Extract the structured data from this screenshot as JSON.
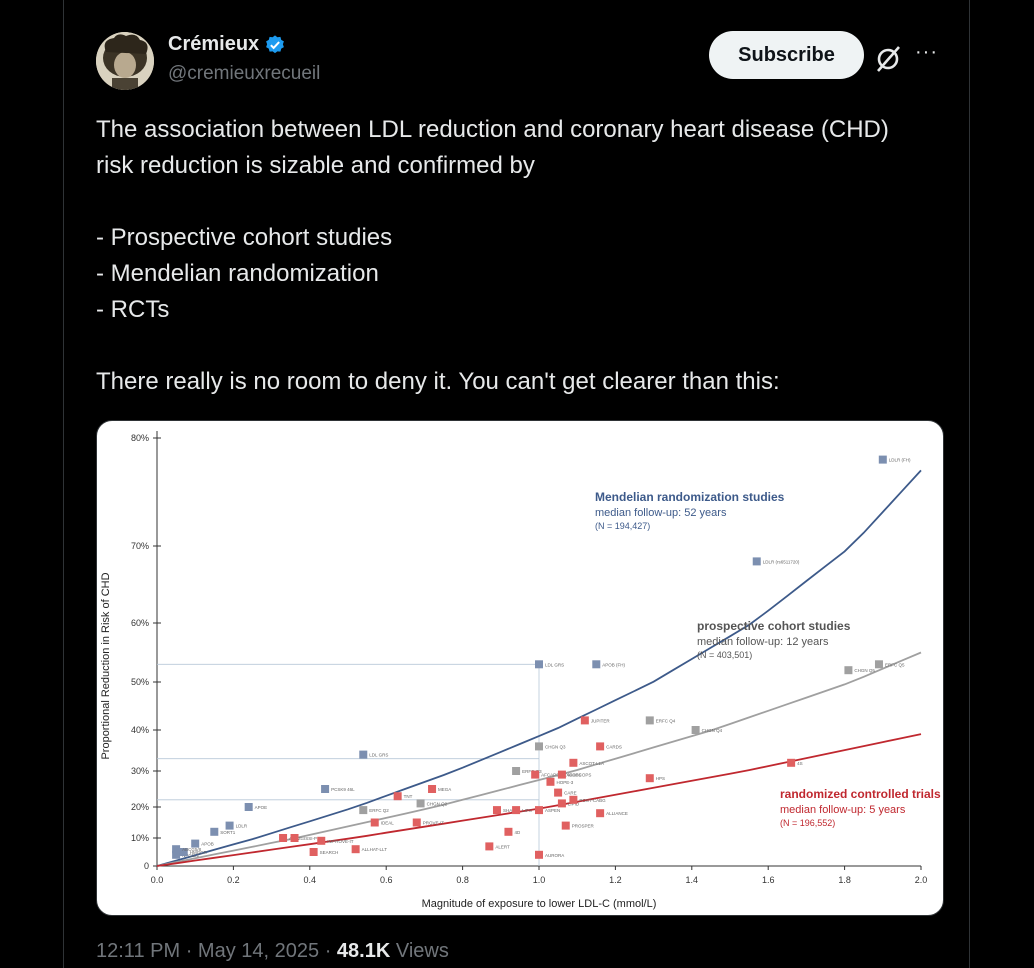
{
  "author": {
    "name": "Crémieux",
    "handle": "@cremieuxrecueil",
    "verified_icon": "verified-badge-icon"
  },
  "actions": {
    "subscribe_label": "Subscribe",
    "grok_icon": "grok-icon",
    "more_label": "···"
  },
  "tweet": {
    "line1": "The association between LDL reduction and coronary heart disease (CHD) risk reduction is sizable and confirmed by",
    "bullet1": "- Prospective cohort studies",
    "bullet2": "- Mendelian randomization",
    "bullet3": "- RCTs",
    "line2": "There really is no room to deny it. You can't get clearer than this:"
  },
  "meta": {
    "time": "12:11 PM",
    "sep1": "·",
    "date": "May 14, 2025",
    "sep2": "·",
    "views_count": "48.1K",
    "views_label": "Views"
  },
  "colors": {
    "mendelian": "#3d5a8a",
    "cohort": "#a0a0a0",
    "rct": "#c0282f",
    "rct_point": "#e06060",
    "mendelian_point": "#7c8fb0"
  },
  "chart_data": {
    "type": "scatter",
    "xlabel": "Magnitude of exposure to lower LDL-C (mmol/L)",
    "ylabel": "Proportional Reduction in Risk of CHD",
    "xlim": [
      0,
      2.0
    ],
    "ylim": [
      0,
      80
    ],
    "y_scale": "log-like",
    "x_ticks": [
      "0.0",
      "0.2",
      "0.4",
      "0.6",
      "0.8",
      "1.0",
      "1.2",
      "1.4",
      "1.6",
      "1.8",
      "2.0"
    ],
    "y_ticks": [
      "0",
      "10%",
      "20%",
      "30%",
      "40%",
      "50%",
      "60%",
      "70%",
      "80%"
    ],
    "series": [
      {
        "name": "Mendelian randomization studies",
        "detail1": "median follow-up: 52 years",
        "detail2": "(N = 194,427)",
        "line": [
          [
            0,
            0
          ],
          [
            2.0,
            77
          ]
        ],
        "points": [
          {
            "label": "NPC1L1",
            "x": 0.05,
            "y": 4
          },
          {
            "label": "HMGCR",
            "x": 0.07,
            "y": 5
          },
          {
            "label": "ABCG5/8",
            "x": 0.05,
            "y": 6
          },
          {
            "label": "APOB",
            "x": 0.1,
            "y": 8
          },
          {
            "label": "SORT1",
            "x": 0.15,
            "y": 12
          },
          {
            "label": "LDLR",
            "x": 0.19,
            "y": 14
          },
          {
            "label": "APOE",
            "x": 0.24,
            "y": 20
          },
          {
            "label": "PCSK9 46L",
            "x": 0.44,
            "y": 25
          },
          {
            "label": "LDL GRS",
            "x": 0.54,
            "y": 34
          },
          {
            "label": "LDL GRS",
            "x": 1.0,
            "y": 53
          },
          {
            "label": "APOB (FH)",
            "x": 1.15,
            "y": 53
          },
          {
            "label": "LDLR (rs6511720)",
            "x": 1.57,
            "y": 68
          },
          {
            "label": "LDLR (FH)",
            "x": 1.9,
            "y": 78
          }
        ]
      },
      {
        "name": "prospective cohort studies",
        "detail1": "median follow-up: 12 years",
        "detail2": "(N = 403,501)",
        "line": [
          [
            0,
            0
          ],
          [
            2.0,
            55
          ]
        ],
        "points": [
          {
            "label": "ERFC Q2",
            "x": 0.54,
            "y": 19
          },
          {
            "label": "CHGN Q2",
            "x": 0.69,
            "y": 21
          },
          {
            "label": "ERFC Q3",
            "x": 0.94,
            "y": 30
          },
          {
            "label": "CHGN Q3",
            "x": 1.0,
            "y": 36
          },
          {
            "label": "ERFC Q4",
            "x": 1.29,
            "y": 42
          },
          {
            "label": "CHGN Q4",
            "x": 1.41,
            "y": 40
          },
          {
            "label": "CHGN Q5",
            "x": 1.81,
            "y": 52
          },
          {
            "label": "ERFC Q5",
            "x": 1.89,
            "y": 53
          }
        ]
      },
      {
        "name": "randomized controlled trials",
        "detail1": "median follow-up: 5 years",
        "detail2": "(N = 196,552)",
        "line": [
          [
            0,
            0
          ],
          [
            2.0,
            39
          ]
        ],
        "points": [
          {
            "label": "A to Z",
            "x": 0.33,
            "y": 10
          },
          {
            "label": "GISSI-P",
            "x": 0.36,
            "y": 10
          },
          {
            "label": "SEARCH",
            "x": 0.41,
            "y": 5
          },
          {
            "label": "IMPROVE-IT",
            "x": 0.43,
            "y": 9
          },
          {
            "label": "ALLHAT-LLT",
            "x": 0.52,
            "y": 6
          },
          {
            "label": "IDEAL",
            "x": 0.57,
            "y": 15
          },
          {
            "label": "TNT",
            "x": 0.63,
            "y": 23
          },
          {
            "label": "MEGA",
            "x": 0.72,
            "y": 25
          },
          {
            "label": "PROVE-IT",
            "x": 0.68,
            "y": 15
          },
          {
            "label": "ALERT",
            "x": 0.87,
            "y": 7
          },
          {
            "label": "SHARP",
            "x": 0.89,
            "y": 19
          },
          {
            "label": "4D",
            "x": 0.92,
            "y": 12
          },
          {
            "label": "LIPS",
            "x": 0.94,
            "y": 19
          },
          {
            "label": "AFCAPS/TEXCAPS",
            "x": 0.99,
            "y": 29
          },
          {
            "label": "ASPEN",
            "x": 1.0,
            "y": 19
          },
          {
            "label": "AURORA",
            "x": 1.0,
            "y": 4
          },
          {
            "label": "HOPE-3",
            "x": 1.03,
            "y": 27
          },
          {
            "label": "CARE",
            "x": 1.05,
            "y": 24
          },
          {
            "label": "WOSCOPS",
            "x": 1.06,
            "y": 29
          },
          {
            "label": "LIPID",
            "x": 1.06,
            "y": 21
          },
          {
            "label": "PROSPER",
            "x": 1.07,
            "y": 14
          },
          {
            "label": "POST-CABG",
            "x": 1.09,
            "y": 22
          },
          {
            "label": "ASCOT-LLA",
            "x": 1.09,
            "y": 32
          },
          {
            "label": "ALLIANCE",
            "x": 1.16,
            "y": 18
          },
          {
            "label": "JUPITER",
            "x": 1.12,
            "y": 42
          },
          {
            "label": "CARDS",
            "x": 1.16,
            "y": 36
          },
          {
            "label": "HPS",
            "x": 1.29,
            "y": 28
          },
          {
            "label": "4S",
            "x": 1.66,
            "y": 32
          }
        ]
      }
    ]
  }
}
